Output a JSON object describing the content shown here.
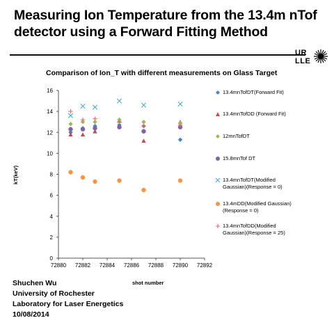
{
  "slide": {
    "title_line1": "Measuring Ion Temperature from the 13.4m nTof",
    "title_line2": "detector using a Forward Fitting Method",
    "logo_text_top": "UR",
    "logo_text_bottom": "LLE",
    "author": "Shuchen Wu",
    "affiliation1": "University of Rochester",
    "affiliation2": "Laboratory for Laser Energetics",
    "date": "10/08/2014"
  },
  "chart_data": {
    "type": "scatter",
    "title": "Comparison of Ion_T with different measurements on Glass Target",
    "xlabel": "shot number",
    "ylabel": "kT(keV)",
    "xlim": [
      72880,
      72892
    ],
    "ylim": [
      0,
      16
    ],
    "x_ticks": [
      72880,
      72882,
      72884,
      72886,
      72888,
      72890,
      72892
    ],
    "y_ticks": [
      0,
      2,
      4,
      6,
      8,
      10,
      12,
      14,
      16
    ],
    "legend_position": "right",
    "series": [
      {
        "name": "13.4mnTofDT(Forward Fit)",
        "marker": "diamond",
        "color": "#4f81bd",
        "x": [
          72881,
          72882,
          72883,
          72885,
          72887,
          72890
        ],
        "y": [
          12.0,
          12.4,
          12.6,
          12.7,
          12.6,
          11.3
        ]
      },
      {
        "name": "13.4mnTofDD (Forward Fit)",
        "marker": "triangle",
        "color": "#c0504d",
        "x": [
          72881,
          72882,
          72883,
          72885,
          72887,
          72890
        ],
        "y": [
          11.8,
          11.8,
          12.1,
          13.1,
          11.2,
          13.0
        ]
      },
      {
        "name": "12mnTofDT",
        "marker": "diamond",
        "color": "#9bbb59",
        "x": [
          72881,
          72882,
          72883,
          72885,
          72887,
          72890
        ],
        "y": [
          12.8,
          13.0,
          13.0,
          13.2,
          13.0,
          12.9
        ]
      },
      {
        "name": "15.8mnTof DT",
        "marker": "circle",
        "color": "#8064a2",
        "x": [
          72881,
          72882,
          72883,
          72885,
          72887,
          72890
        ],
        "y": [
          12.3,
          12.3,
          12.4,
          12.5,
          12.1,
          12.5
        ]
      },
      {
        "name": "13.4mnTofDT(Modified Gaussian)(Response = 0)",
        "marker": "x",
        "color": "#4bacc6",
        "x": [
          72881,
          72882,
          72883,
          72885,
          72887,
          72890
        ],
        "y": [
          13.6,
          14.5,
          14.4,
          15.0,
          14.6,
          14.7
        ]
      },
      {
        "name": "13.4mDD(Modified Gaussian)(Response = 0)",
        "marker": "circle",
        "color": "#f79646",
        "x": [
          72881,
          72882,
          72883,
          72885,
          72887,
          72890
        ],
        "y": [
          8.2,
          7.7,
          7.3,
          7.4,
          6.5,
          7.4
        ]
      },
      {
        "name": "13.4mnTofDD(Modified Gaussian)(Response = 25)",
        "marker": "plus",
        "color": "#e46c6c",
        "x": [
          72881,
          72882,
          72883,
          72885,
          72887,
          72890
        ],
        "y": [
          14.0,
          13.2,
          13.3,
          13.0,
          12.6,
          12.7
        ]
      }
    ]
  }
}
